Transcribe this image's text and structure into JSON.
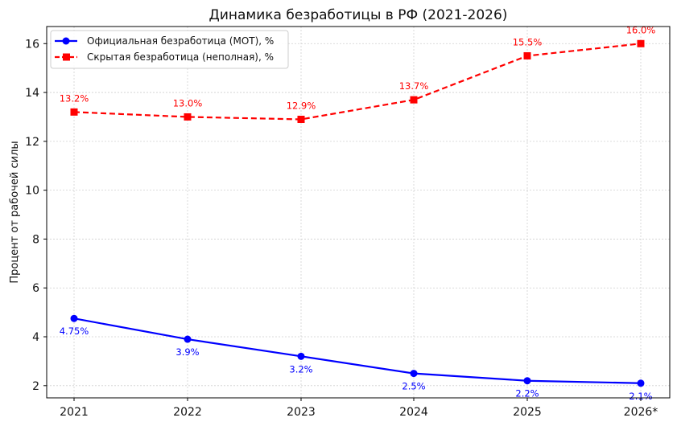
{
  "chart_data": {
    "type": "line",
    "title": "Динамика безработицы в РФ (2021-2026)",
    "xlabel": "",
    "ylabel": "Процент от рабочей силы",
    "categories": [
      "2021",
      "2022",
      "2023",
      "2024",
      "2025",
      "2026*"
    ],
    "ylim": [
      1.5,
      16.7
    ],
    "yticks": [
      2,
      4,
      6,
      8,
      10,
      12,
      14,
      16
    ],
    "grid": true,
    "legend_position": "top-left",
    "series": [
      {
        "name": "Официальная безработица (МОТ), %",
        "values": [
          4.75,
          3.9,
          3.2,
          2.5,
          2.2,
          2.1
        ],
        "labels": [
          "4.75%",
          "3.9%",
          "3.2%",
          "2.5%",
          "2.2%",
          "2.1%"
        ],
        "color": "#0000ff",
        "line_style": "solid",
        "marker": "circle",
        "label_position": "below"
      },
      {
        "name": "Скрытая безработица (неполная), %",
        "values": [
          13.2,
          13.0,
          12.9,
          13.7,
          15.5,
          16.0
        ],
        "labels": [
          "13.2%",
          "13.0%",
          "12.9%",
          "13.7%",
          "15.5%",
          "16.0%"
        ],
        "color": "#ff0000",
        "line_style": "dashed",
        "marker": "square",
        "label_position": "above"
      }
    ]
  }
}
